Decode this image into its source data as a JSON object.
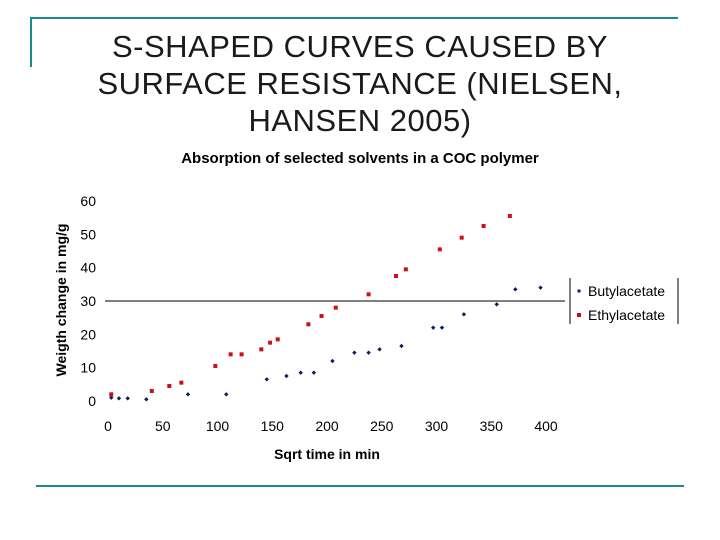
{
  "slide": {
    "title_lines": [
      "S-SHAPED CURVES CAUSED BY",
      "SURFACE RESISTANCE (NIELSEN,",
      "HANSEN 2005)"
    ]
  },
  "chart_data": {
    "type": "scatter",
    "title": "Absorption of selected solvents in a COC polymer",
    "xlabel": "Sqrt time in min",
    "ylabel": "Weigth change in mg/g",
    "xlim": [
      0,
      400
    ],
    "ylim": [
      0,
      60
    ],
    "xticks": [
      "0",
      "50",
      "100",
      "150",
      "200",
      "250",
      "300",
      "350",
      "400"
    ],
    "yticks": [
      "0",
      "10",
      "20",
      "30",
      "40",
      "50",
      "60"
    ],
    "legend_position": "right",
    "series": [
      {
        "name": "Butylacetate",
        "color": "#0a1f5c",
        "marker": "diamond",
        "points": [
          [
            3,
            1
          ],
          [
            10,
            0.8
          ],
          [
            18,
            0.8
          ],
          [
            35,
            0.5
          ],
          [
            73,
            2
          ],
          [
            108,
            2
          ],
          [
            145,
            6.5
          ],
          [
            163,
            7.5
          ],
          [
            176,
            8.5
          ],
          [
            188,
            8.5
          ],
          [
            205,
            12
          ],
          [
            225,
            14.5
          ],
          [
            238,
            14.5
          ],
          [
            248,
            15.5
          ],
          [
            268,
            16.5
          ],
          [
            297,
            22
          ],
          [
            305,
            22
          ],
          [
            325,
            26
          ],
          [
            355,
            29
          ],
          [
            372,
            33.5
          ],
          [
            395,
            34
          ]
        ]
      },
      {
        "name": "Ethylacetate",
        "color": "#d01010",
        "marker": "square",
        "points": [
          [
            3,
            2
          ],
          [
            40,
            3
          ],
          [
            56,
            4.5
          ],
          [
            67,
            5.5
          ],
          [
            98,
            10.5
          ],
          [
            112,
            14
          ],
          [
            122,
            14
          ],
          [
            140,
            15.5
          ],
          [
            148,
            17.5
          ],
          [
            155,
            18.5
          ],
          [
            183,
            23
          ],
          [
            195,
            25.5
          ],
          [
            208,
            28
          ],
          [
            238,
            32
          ],
          [
            263,
            37.5
          ],
          [
            272,
            39.5
          ],
          [
            303,
            45.5
          ],
          [
            323,
            49
          ],
          [
            343,
            52.5
          ],
          [
            367,
            55.5
          ]
        ]
      }
    ]
  }
}
